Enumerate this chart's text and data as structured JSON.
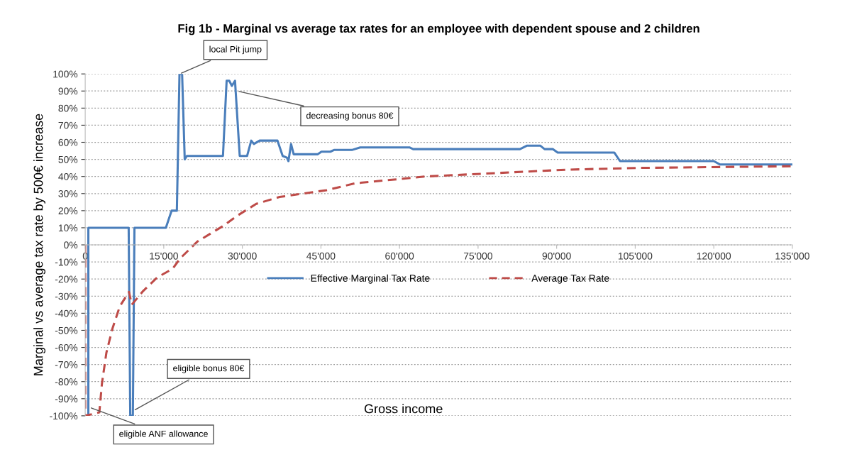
{
  "chart_data": {
    "type": "line",
    "title": "Fig 1b - Marginal vs average tax rates for an employee with dependent spouse and 2 children",
    "xlabel": "Gross income",
    "ylabel": "Marginal vs average tax rate by 500€ increase",
    "xlim": [
      0,
      135000
    ],
    "xticks": [
      0,
      {
        "value": 15000,
        "label": "15'000"
      },
      {
        "value": 30000,
        "label": "30'000"
      },
      {
        "value": 45000,
        "label": "45'000"
      },
      {
        "value": 60000,
        "label": "60'000"
      },
      {
        "value": 75000,
        "label": "75'000"
      },
      {
        "value": 90000,
        "label": "90'000"
      },
      {
        "value": 105000,
        "label": "105'000"
      },
      {
        "value": 120000,
        "label": "120'000"
      },
      {
        "value": 135000,
        "label": "135'000"
      }
    ],
    "ylim": [
      -100,
      100
    ],
    "yticks": [
      {
        "value": -100,
        "label": "-100%"
      },
      {
        "value": -90,
        "label": "-90%"
      },
      {
        "value": -80,
        "label": "-80%"
      },
      {
        "value": -70,
        "label": "-70%"
      },
      {
        "value": -60,
        "label": "-60%"
      },
      {
        "value": -50,
        "label": "-50%"
      },
      {
        "value": -40,
        "label": "-40%"
      },
      {
        "value": -30,
        "label": "-30%"
      },
      {
        "value": -20,
        "label": "-20%"
      },
      {
        "value": -10,
        "label": "-10%"
      },
      {
        "value": 0,
        "label": "0%"
      },
      {
        "value": 10,
        "label": "10%"
      },
      {
        "value": 20,
        "label": "20%"
      },
      {
        "value": 30,
        "label": "30%"
      },
      {
        "value": 40,
        "label": "40%"
      },
      {
        "value": 50,
        "label": "50%"
      },
      {
        "value": 60,
        "label": "60%"
      },
      {
        "value": 70,
        "label": "70%"
      },
      {
        "value": 80,
        "label": "80%"
      },
      {
        "value": 90,
        "label": "90%"
      },
      {
        "value": 100,
        "label": "100%"
      }
    ],
    "grid": "y",
    "legend": "center",
    "series": [
      {
        "name": "Effective Marginal Tax Rate",
        "color": "#4a7ebb",
        "line_style": "solid",
        "x": [
          600,
          600,
          8300,
          8600,
          9100,
          9400,
          15400,
          16500,
          17500,
          18000,
          18500,
          19000,
          19400,
          26300,
          27000,
          27500,
          28000,
          28600,
          29500,
          30900,
          31700,
          32200,
          33300,
          36700,
          37700,
          38500,
          38800,
          39300,
          39800,
          44400,
          45100,
          46800,
          47500,
          50900,
          52500,
          56900,
          61900,
          62600,
          83000,
          84300,
          86900,
          87700,
          89300,
          90200,
          101000,
          102100,
          120000,
          121200,
          135000
        ],
        "values": [
          -100,
          10,
          10,
          -100,
          -100,
          10,
          10,
          20,
          20,
          100,
          100,
          50,
          52,
          52,
          96,
          96,
          93,
          96,
          52,
          52,
          61,
          59,
          61,
          61,
          52,
          51,
          49,
          59,
          53,
          53,
          54.5,
          54.5,
          55.5,
          55.5,
          57,
          57,
          57,
          56,
          56,
          58,
          58,
          56,
          56,
          54,
          54,
          49,
          49,
          47,
          47
        ]
      },
      {
        "name": "Average Tax Rate",
        "color": "#be4b48",
        "line_style": "dashed",
        "x": [
          0,
          0,
          2700,
          3200,
          4050,
          5200,
          6600,
          8350,
          8900,
          11060,
          13760,
          16700,
          18100,
          21450,
          26300,
          29000,
          32650,
          37100,
          46100,
          51500,
          65000,
          78500,
          92000,
          105500,
          135000
        ],
        "values": [
          0,
          -100,
          -98,
          -81,
          -63,
          -49,
          -36,
          -27.5,
          -35,
          -27,
          -19,
          -14,
          -8,
          2,
          11,
          17,
          24,
          28,
          32,
          36,
          40,
          42,
          44,
          45,
          46
        ]
      }
    ],
    "annotations": [
      {
        "text": "local Pit jump",
        "x": 18000,
        "y": 100
      },
      {
        "text": "decreasing bonus 80€",
        "x": 29000,
        "y": 90
      },
      {
        "text": "eligible bonus 80€",
        "x": 9200,
        "y": -97
      },
      {
        "text": "eligible ANF allowance",
        "x": 800,
        "y": -95
      }
    ]
  }
}
